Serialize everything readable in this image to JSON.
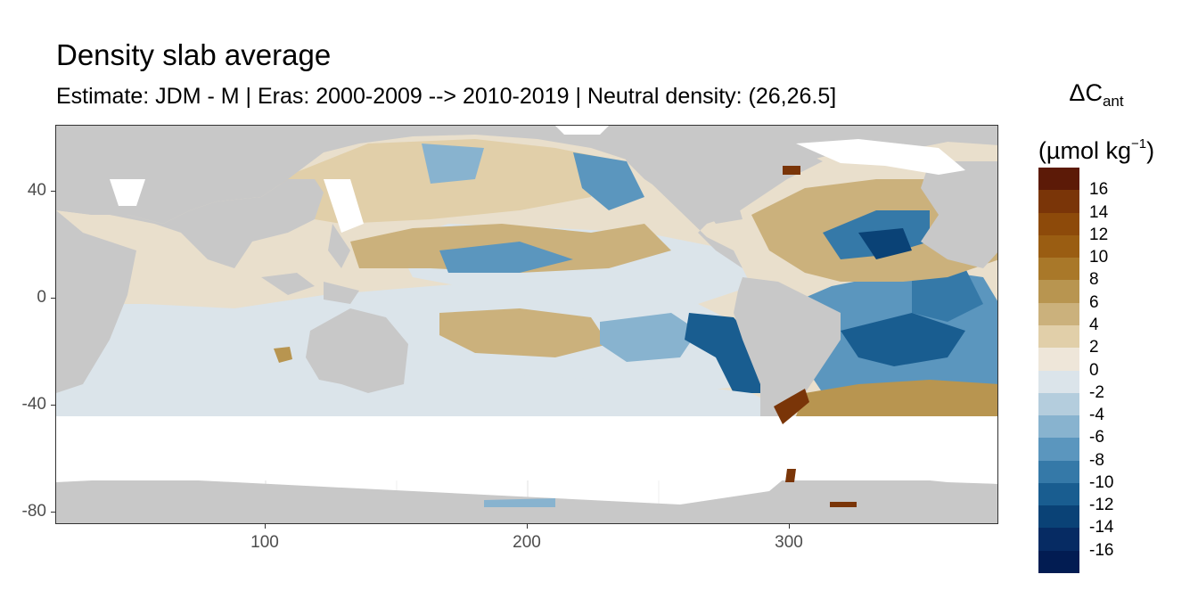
{
  "title": "Density slab average",
  "subtitle": "Estimate: JDM - M | Eras: 2000-2009 --> 2010-2019 | Neutral density: (26,26.5]",
  "colorbar": {
    "title_main": "ΔC",
    "title_sub": "ant",
    "unit_main": "(µmol kg",
    "unit_sup": "−1",
    "unit_close": ")",
    "labels": [
      "16",
      "14",
      "12",
      "10",
      "8",
      "6",
      "4",
      "2",
      "0",
      "-2",
      "-4",
      "-6",
      "-8",
      "-10",
      "-12",
      "-14",
      "-16"
    ],
    "colors": [
      "#5c1a07",
      "#7a3508",
      "#8d4a0a",
      "#9a5d12",
      "#a97829",
      "#b89550",
      "#cbb17c",
      "#e1cfa9",
      "#eee6d9",
      "#dbe4ea",
      "#b4cddd",
      "#88b3cf",
      "#5b96be",
      "#3579a8",
      "#195d90",
      "#0a4276",
      "#062b63",
      "#021c52"
    ]
  },
  "map_colors": {
    "land": "#c8c8c8",
    "ocean_base": "#e9dfcc"
  },
  "axes": {
    "x_ticks": [
      "100",
      "200",
      "300"
    ],
    "y_ticks": [
      "40",
      "0",
      "-40",
      "-80"
    ],
    "x_range": [
      20,
      380
    ],
    "y_range": [
      -85,
      65
    ]
  }
}
